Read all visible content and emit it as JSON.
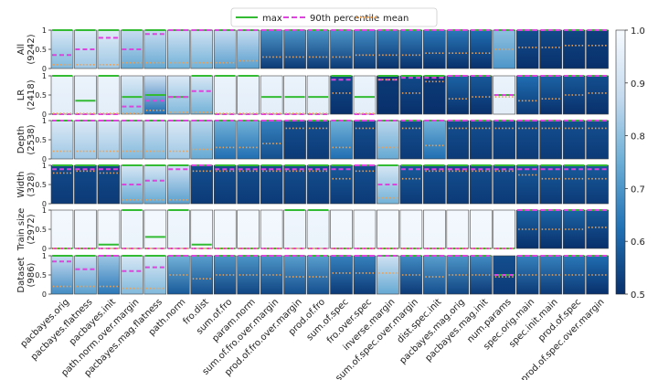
{
  "chart_data": {
    "type": "heatmap",
    "legend": {
      "placement": "top-center",
      "entries": [
        {
          "name": "max",
          "style": "solid",
          "color": "#33bb33"
        },
        {
          "name": "90th percentile",
          "style": "dashed",
          "color": "#dd44dd"
        },
        {
          "name": "mean",
          "style": "dotted",
          "color": "#f0a050"
        }
      ]
    },
    "row_labels": [
      "All\n(9242)",
      "LR\n(2418)",
      "Depth\n(2538)",
      "Width\n(328)",
      "Train size\n(2972)",
      "Dataset\n(986)"
    ],
    "column_labels": [
      "pacbayes.orig",
      "pacbayes.flatness",
      "pacbayes.init",
      "path.norm.over.margin",
      "pacbayes.mag.flatness",
      "path.norm",
      "fro.dist",
      "sum.of.fro",
      "param.norm",
      "sum.of.fro.over.margin",
      "prod.of.fro.over.margin",
      "prod.of.fro",
      "sum.of.spec",
      "fro.over.spec",
      "inverse.margin",
      "sum.of.spec.over.margin",
      "dist.spec.init",
      "pacbayes.mag.orig",
      "pacbayes.mag.init",
      "num.params",
      "spec.orig.main",
      "spec.init.main",
      "prod.of.spec",
      "prod.of.spec.over.margin"
    ],
    "panel_y_ticks": [
      0,
      0.5,
      1
    ],
    "colorbar": {
      "range": [
        0.5,
        1.0
      ],
      "ticks": [
        0.5,
        0.6,
        0.7,
        0.8,
        0.9,
        1.0
      ],
      "colors": [
        "#08306b",
        "#2171b5",
        "#6baed6",
        "#c6dbef",
        "#f7fbff"
      ]
    },
    "series_order": [
      "max",
      "p90",
      "mean"
    ],
    "panels": [
      [
        [
          1,
          0.35,
          0.1
        ],
        [
          1,
          0.5,
          0.1
        ],
        [
          1,
          0.8,
          0.1
        ],
        [
          1,
          0.5,
          0.15
        ],
        [
          1,
          0.9,
          0.15
        ],
        [
          1,
          1,
          0.15
        ],
        [
          1,
          1,
          0.15
        ],
        [
          1,
          1,
          0.15
        ],
        [
          1,
          1,
          0.2
        ],
        [
          1,
          1,
          0.3
        ],
        [
          1,
          1,
          0.3
        ],
        [
          1,
          1,
          0.3
        ],
        [
          1,
          1,
          0.3
        ],
        [
          1,
          1,
          0.35
        ],
        [
          1,
          1,
          0.35
        ],
        [
          1,
          1,
          0.35
        ],
        [
          1,
          1,
          0.4
        ],
        [
          1,
          1,
          0.4
        ],
        [
          1,
          1,
          0.4
        ],
        [
          1,
          1,
          0.5
        ],
        [
          1,
          1,
          0.55
        ],
        [
          1,
          1,
          0.55
        ],
        [
          1,
          1,
          0.6
        ],
        [
          1,
          1,
          0.6
        ]
      ],
      [
        [
          1,
          0,
          0.02
        ],
        [
          0.35,
          0,
          0.02
        ],
        [
          1,
          0,
          0.02
        ],
        [
          0.45,
          0.2,
          0.02
        ],
        [
          0.5,
          0.35,
          0.1
        ],
        [
          0.45,
          0.45,
          0.05
        ],
        [
          1,
          0.6,
          0.05
        ],
        [
          1,
          0,
          0.02
        ],
        [
          1,
          0,
          0.02
        ],
        [
          0.45,
          0,
          0.02
        ],
        [
          0.45,
          0,
          0.02
        ],
        [
          0.45,
          0,
          0.02
        ],
        [
          1,
          0.9,
          0.55
        ],
        [
          0.45,
          0,
          0.02
        ],
        [
          1,
          0.9,
          0.9
        ],
        [
          1,
          0.95,
          0.55
        ],
        [
          1,
          0.95,
          0.85
        ],
        [
          1,
          1,
          0.4
        ],
        [
          1,
          1,
          0.45
        ],
        [
          0.5,
          0.5,
          0.45
        ],
        [
          1,
          1,
          0.35
        ],
        [
          1,
          1,
          0.4
        ],
        [
          1,
          1,
          0.5
        ],
        [
          1,
          1,
          0.55
        ]
      ],
      [
        [
          1,
          1,
          0.2
        ],
        [
          1,
          1,
          0.2
        ],
        [
          1,
          1,
          0.2
        ],
        [
          1,
          1,
          0.2
        ],
        [
          1,
          1,
          0.2
        ],
        [
          1,
          1,
          0.2
        ],
        [
          1,
          1,
          0.25
        ],
        [
          1,
          1,
          0.3
        ],
        [
          1,
          1,
          0.3
        ],
        [
          1,
          1,
          0.4
        ],
        [
          1,
          1,
          0.8
        ],
        [
          1,
          1,
          0.8
        ],
        [
          1,
          1,
          0.3
        ],
        [
          1,
          1,
          0.8
        ],
        [
          1,
          1,
          0.3
        ],
        [
          1,
          1,
          0.8
        ],
        [
          1,
          1,
          0.35
        ],
        [
          1,
          1,
          0.8
        ],
        [
          1,
          1,
          0.8
        ],
        [
          1,
          1,
          0.8
        ],
        [
          1,
          1,
          0.8
        ],
        [
          1,
          1,
          0.8
        ],
        [
          1,
          1,
          0.8
        ],
        [
          1,
          1,
          0.8
        ]
      ],
      [
        [
          1,
          0.9,
          0.8
        ],
        [
          1,
          0.9,
          0.85
        ],
        [
          1,
          0.9,
          0.8
        ],
        [
          1,
          0.5,
          0.1
        ],
        [
          1,
          0.6,
          0.1
        ],
        [
          1,
          0.9,
          0.1
        ],
        [
          1,
          1,
          0.85
        ],
        [
          1,
          0.9,
          0.85
        ],
        [
          1,
          0.9,
          0.85
        ],
        [
          1,
          0.9,
          0.85
        ],
        [
          1,
          0.9,
          0.85
        ],
        [
          1,
          0.9,
          0.85
        ],
        [
          1,
          0.9,
          0.65
        ],
        [
          1,
          1,
          0.85
        ],
        [
          1,
          0.5,
          0.15
        ],
        [
          1,
          0.9,
          0.65
        ],
        [
          1,
          0.9,
          0.85
        ],
        [
          1,
          0.9,
          0.85
        ],
        [
          1,
          0.9,
          0.85
        ],
        [
          1,
          0.9,
          0.85
        ],
        [
          1,
          0.9,
          0.75
        ],
        [
          1,
          0.9,
          0.65
        ],
        [
          1,
          0.9,
          0.65
        ],
        [
          1,
          0.9,
          0.65
        ]
      ],
      [
        [
          0,
          0,
          0
        ],
        [
          0,
          0,
          0
        ],
        [
          0.1,
          0,
          0
        ],
        [
          1,
          0,
          0
        ],
        [
          0.3,
          0,
          0
        ],
        [
          1,
          0,
          0
        ],
        [
          0.1,
          0,
          0
        ],
        [
          0,
          0,
          0
        ],
        [
          0,
          0,
          0
        ],
        [
          0,
          0,
          0
        ],
        [
          1,
          0,
          0
        ],
        [
          1,
          0,
          0
        ],
        [
          0,
          0,
          0
        ],
        [
          0,
          0,
          0
        ],
        [
          0,
          0,
          0
        ],
        [
          0,
          0,
          0
        ],
        [
          0,
          0,
          0
        ],
        [
          0,
          0,
          0
        ],
        [
          0,
          0,
          0
        ],
        [
          0,
          0,
          0
        ],
        [
          1,
          1,
          0.5
        ],
        [
          1,
          1,
          0.5
        ],
        [
          1,
          1,
          0.5
        ],
        [
          1,
          1,
          0.55
        ]
      ],
      [
        [
          1,
          0.85,
          0.2
        ],
        [
          1,
          0.65,
          0.2
        ],
        [
          1,
          1,
          0.2
        ],
        [
          1,
          0.6,
          0.15
        ],
        [
          1,
          0.7,
          0.15
        ],
        [
          1,
          1,
          0.5
        ],
        [
          1,
          1,
          0.4
        ],
        [
          1,
          1,
          0.5
        ],
        [
          1,
          1,
          0.5
        ],
        [
          1,
          1,
          0.5
        ],
        [
          1,
          1,
          0.45
        ],
        [
          1,
          1,
          0.45
        ],
        [
          1,
          1,
          0.55
        ],
        [
          1,
          1,
          0.55
        ],
        [
          1,
          1,
          0.55
        ],
        [
          1,
          1,
          0.5
        ],
        [
          1,
          1,
          0.45
        ],
        [
          1,
          1,
          0.5
        ],
        [
          1,
          1,
          0.5
        ],
        [
          0.5,
          0.5,
          0.45
        ],
        [
          1,
          1,
          0.5
        ],
        [
          1,
          1,
          0.5
        ],
        [
          1,
          1,
          0.5
        ],
        [
          1,
          1,
          0.5
        ]
      ]
    ],
    "shade_top": [
      [
        0.92,
        0.94,
        0.94,
        0.88,
        0.88,
        0.9,
        0.9,
        0.88,
        0.88,
        0.7,
        0.7,
        0.7,
        0.7,
        0.68,
        0.66,
        0.66,
        0.64,
        0.64,
        0.62,
        0.8,
        0.56,
        0.55,
        0.54,
        0.53
      ],
      [
        0.97,
        0.97,
        0.97,
        0.94,
        0.9,
        0.93,
        0.92,
        0.97,
        0.97,
        0.97,
        0.97,
        0.97,
        0.55,
        0.97,
        0.52,
        0.55,
        0.52,
        0.6,
        0.58,
        0.97,
        0.62,
        0.6,
        0.58,
        0.56
      ],
      [
        0.93,
        0.93,
        0.93,
        0.9,
        0.9,
        0.93,
        0.86,
        0.76,
        0.76,
        0.66,
        0.56,
        0.56,
        0.76,
        0.56,
        0.86,
        0.56,
        0.76,
        0.56,
        0.56,
        0.56,
        0.56,
        0.56,
        0.56,
        0.56
      ],
      [
        0.55,
        0.55,
        0.55,
        0.92,
        0.92,
        0.9,
        0.56,
        0.56,
        0.56,
        0.56,
        0.56,
        0.56,
        0.58,
        0.56,
        0.92,
        0.58,
        0.56,
        0.56,
        0.56,
        0.56,
        0.58,
        0.58,
        0.58,
        0.58
      ],
      [
        0.99,
        0.99,
        0.99,
        0.98,
        0.99,
        0.98,
        0.99,
        0.99,
        0.99,
        0.99,
        0.98,
        0.98,
        0.99,
        0.99,
        0.99,
        0.99,
        0.99,
        0.99,
        0.99,
        0.99,
        0.6,
        0.6,
        0.6,
        0.58
      ],
      [
        0.88,
        0.9,
        0.82,
        0.92,
        0.92,
        0.76,
        0.72,
        0.7,
        0.7,
        0.7,
        0.72,
        0.72,
        0.66,
        0.66,
        0.9,
        0.68,
        0.72,
        0.7,
        0.68,
        0.56,
        0.66,
        0.66,
        0.64,
        0.62
      ]
    ],
    "shade_bottom": [
      [
        0.78,
        0.82,
        0.82,
        0.74,
        0.74,
        0.76,
        0.76,
        0.72,
        0.72,
        0.52,
        0.52,
        0.52,
        0.52,
        0.52,
        0.5,
        0.5,
        0.5,
        0.5,
        0.5,
        0.7,
        0.5,
        0.5,
        0.5,
        0.5
      ],
      [
        0.95,
        0.95,
        0.95,
        0.8,
        0.62,
        0.78,
        0.76,
        0.95,
        0.95,
        0.95,
        0.95,
        0.95,
        0.5,
        0.95,
        0.5,
        0.5,
        0.5,
        0.5,
        0.5,
        0.95,
        0.52,
        0.5,
        0.5,
        0.5
      ],
      [
        0.82,
        0.82,
        0.82,
        0.78,
        0.78,
        0.82,
        0.74,
        0.62,
        0.62,
        0.56,
        0.52,
        0.52,
        0.62,
        0.52,
        0.74,
        0.52,
        0.62,
        0.52,
        0.52,
        0.52,
        0.52,
        0.52,
        0.52,
        0.52
      ],
      [
        0.52,
        0.52,
        0.52,
        0.74,
        0.74,
        0.72,
        0.52,
        0.52,
        0.52,
        0.52,
        0.52,
        0.52,
        0.52,
        0.52,
        0.76,
        0.52,
        0.52,
        0.52,
        0.52,
        0.52,
        0.52,
        0.52,
        0.52,
        0.52
      ],
      [
        0.98,
        0.98,
        0.98,
        0.97,
        0.98,
        0.97,
        0.98,
        0.98,
        0.98,
        0.98,
        0.97,
        0.97,
        0.98,
        0.98,
        0.98,
        0.98,
        0.98,
        0.98,
        0.98,
        0.98,
        0.5,
        0.5,
        0.5,
        0.5
      ],
      [
        0.68,
        0.72,
        0.64,
        0.78,
        0.78,
        0.58,
        0.56,
        0.54,
        0.54,
        0.54,
        0.56,
        0.56,
        0.52,
        0.52,
        0.74,
        0.52,
        0.56,
        0.54,
        0.52,
        0.52,
        0.52,
        0.52,
        0.52,
        0.5
      ]
    ]
  }
}
